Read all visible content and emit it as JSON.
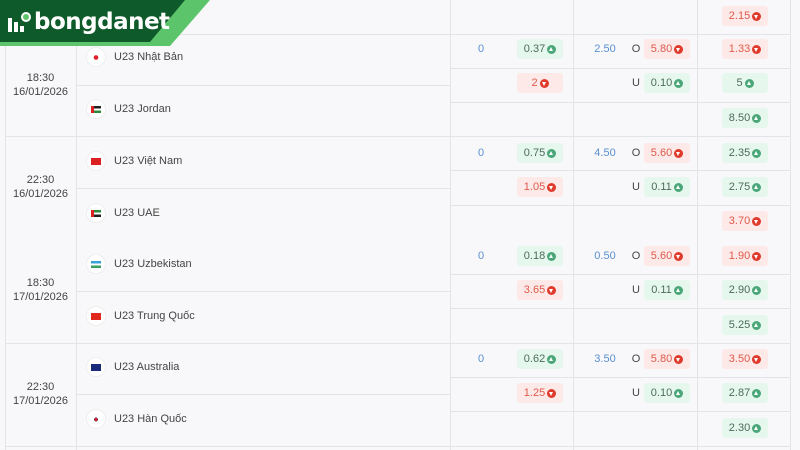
{
  "brand": {
    "name": "bongdanet",
    "colors": {
      "dark": "#0f5a2a",
      "light": "#5cc46a"
    }
  },
  "colors": {
    "up_bg": "#e6f8ee",
    "down_bg": "#fde9e7",
    "up": "#4ba77a",
    "down": "#e03a2c",
    "line": "#5a8fcf"
  },
  "top_partial": {
    "x12": {
      "value": "2.15",
      "trend": "down"
    }
  },
  "matches": [
    {
      "time": "18:30",
      "date": "16/01/2026",
      "teams": [
        {
          "name": "U23 Nhật Bản",
          "flag": "japan"
        },
        {
          "name": "U23 Jordan",
          "flag": "jordan"
        }
      ],
      "handicap": {
        "line": "0",
        "home": {
          "value": "0.37",
          "trend": "up"
        },
        "away": {
          "value": "2",
          "trend": "down"
        }
      },
      "overunder": {
        "line": "2.50",
        "over_label": "O",
        "under_label": "U",
        "over": {
          "value": "5.80",
          "trend": "down"
        },
        "under": {
          "value": "0.10",
          "trend": "up"
        }
      },
      "x12": [
        {
          "value": "1.33",
          "trend": "down"
        },
        {
          "value": "5",
          "trend": "up"
        },
        {
          "value": "8.50",
          "trend": "up"
        }
      ]
    },
    {
      "time": "22:30",
      "date": "16/01/2026",
      "teams": [
        {
          "name": "U23 Việt Nam",
          "flag": "vietnam"
        },
        {
          "name": "U23 UAE",
          "flag": "uae"
        }
      ],
      "handicap": {
        "line": "0",
        "home": {
          "value": "0.75",
          "trend": "up"
        },
        "away": {
          "value": "1.05",
          "trend": "down"
        }
      },
      "overunder": {
        "line": "4.50",
        "over_label": "O",
        "under_label": "U",
        "over": {
          "value": "5.60",
          "trend": "down"
        },
        "under": {
          "value": "0.11",
          "trend": "up"
        }
      },
      "x12": [
        {
          "value": "2.35",
          "trend": "up"
        },
        {
          "value": "2.75",
          "trend": "up"
        },
        {
          "value": "3.70",
          "trend": "down"
        }
      ]
    },
    {
      "time": "18:30",
      "date": "17/01/2026",
      "teams": [
        {
          "name": "U23 Uzbekistan",
          "flag": "uzbekistan"
        },
        {
          "name": "U23 Trung Quốc",
          "flag": "china"
        }
      ],
      "handicap": {
        "line": "0",
        "home": {
          "value": "0.18",
          "trend": "up"
        },
        "away": {
          "value": "3.65",
          "trend": "down"
        }
      },
      "overunder": {
        "line": "0.50",
        "over_label": "O",
        "under_label": "U",
        "over": {
          "value": "5.60",
          "trend": "down"
        },
        "under": {
          "value": "0.11",
          "trend": "up"
        }
      },
      "x12": [
        {
          "value": "1.90",
          "trend": "down"
        },
        {
          "value": "2.90",
          "trend": "up"
        },
        {
          "value": "5.25",
          "trend": "up"
        }
      ]
    },
    {
      "time": "22:30",
      "date": "17/01/2026",
      "teams": [
        {
          "name": "U23 Australia",
          "flag": "australia"
        },
        {
          "name": "U23 Hàn Quốc",
          "flag": "korea"
        }
      ],
      "handicap": {
        "line": "0",
        "home": {
          "value": "0.62",
          "trend": "up"
        },
        "away": {
          "value": "1.25",
          "trend": "down"
        }
      },
      "overunder": {
        "line": "3.50",
        "over_label": "O",
        "under_label": "U",
        "over": {
          "value": "5.80",
          "trend": "down"
        },
        "under": {
          "value": "0.10",
          "trend": "up"
        }
      },
      "x12": [
        {
          "value": "3.50",
          "trend": "down"
        },
        {
          "value": "2.87",
          "trend": "up"
        },
        {
          "value": "2.30",
          "trend": "up"
        }
      ]
    }
  ]
}
